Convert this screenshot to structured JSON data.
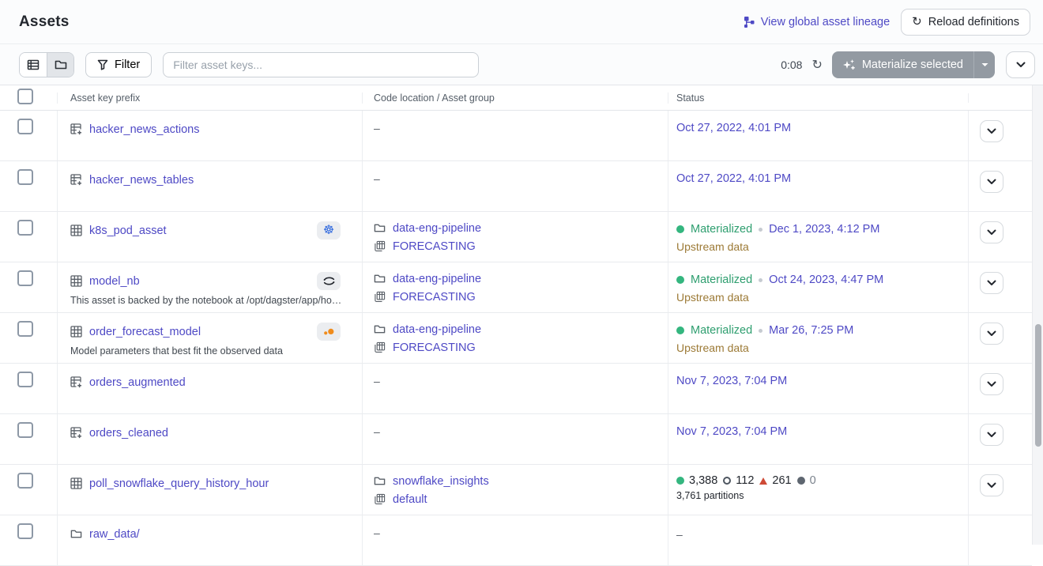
{
  "colors": {
    "link": "#4E49C5",
    "green_text": "#2E9E6F",
    "green_dot": "#34B67F",
    "upstream_note": "#9C7A36",
    "red_triangle": "#CE4A36",
    "kubernetes_blue": "#3069DE",
    "noteable_orange": "#F08C1D",
    "materialize_button_bg": "#939AA2"
  },
  "header": {
    "title": "Assets",
    "lineage_label": "View global asset lineage",
    "reload_label": "Reload definitions"
  },
  "toolbar": {
    "filter_label": "Filter",
    "search_placeholder": "Filter asset keys...",
    "countdown": "0:08",
    "materialize_label": "Materialize selected"
  },
  "table": {
    "columns": [
      "Asset key prefix",
      "Code location / Asset group",
      "Status"
    ],
    "rows": [
      {
        "key": "hacker_news_actions",
        "icon": "table-plus",
        "badge": null,
        "description": null,
        "location": null,
        "status": {
          "date": "Oct 27, 2022, 4:01 PM"
        },
        "action": true
      },
      {
        "key": "hacker_news_tables",
        "icon": "table-plus",
        "badge": null,
        "description": null,
        "location": null,
        "status": {
          "date": "Oct 27, 2022, 4:01 PM"
        },
        "action": true
      },
      {
        "key": "k8s_pod_asset",
        "icon": "table",
        "badge": "kubernetes",
        "description": null,
        "location": {
          "name": "data-eng-pipeline",
          "group": "FORECASTING"
        },
        "status": {
          "materialized": "Materialized",
          "date": "Dec 1, 2023, 4:12 PM",
          "note": "Upstream data"
        },
        "action": true
      },
      {
        "key": "model_nb",
        "icon": "table",
        "badge": "notebook",
        "description": "This asset is backed by the notebook at /opt/dagster/app/ho…",
        "location": {
          "name": "data-eng-pipeline",
          "group": "FORECASTING"
        },
        "status": {
          "materialized": "Materialized",
          "date": "Oct 24, 2023, 4:47 PM",
          "note": "Upstream data"
        },
        "action": true
      },
      {
        "key": "order_forecast_model",
        "icon": "table",
        "badge": "noteable",
        "description": "Model parameters that best fit the observed data",
        "location": {
          "name": "data-eng-pipeline",
          "group": "FORECASTING"
        },
        "status": {
          "materialized": "Materialized",
          "date": "Mar 26, 7:25 PM",
          "note": "Upstream data"
        },
        "action": true
      },
      {
        "key": "orders_augmented",
        "icon": "table-plus",
        "badge": null,
        "description": null,
        "location": null,
        "status": {
          "date": "Nov 7, 2023, 7:04 PM"
        },
        "action": true
      },
      {
        "key": "orders_cleaned",
        "icon": "table-plus",
        "badge": null,
        "description": null,
        "location": null,
        "status": {
          "date": "Nov 7, 2023, 7:04 PM"
        },
        "action": true
      },
      {
        "key": "poll_snowflake_query_history_hour",
        "icon": "table",
        "badge": null,
        "description": null,
        "location": {
          "name": "snowflake_insights",
          "group": "default"
        },
        "status": {
          "counts": [
            {
              "kind": "dot-green",
              "value": "3,388"
            },
            {
              "kind": "circle-outline",
              "value": "112"
            },
            {
              "kind": "triangle-red",
              "value": "261"
            },
            {
              "kind": "dot-gray",
              "value": "0"
            }
          ],
          "sub": "3,761 partitions"
        },
        "action": true
      },
      {
        "key": "raw_data/",
        "icon": "folder",
        "badge": null,
        "description": null,
        "location": null,
        "status": {
          "dash": true
        },
        "action": false
      }
    ]
  }
}
